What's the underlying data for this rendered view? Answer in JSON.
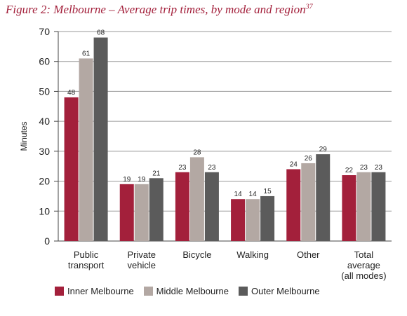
{
  "chart_data": {
    "type": "bar",
    "title": "Figure 2: Melbourne – Average trip times, by mode and region",
    "title_superscript": "37",
    "ylabel": "Minutes",
    "xlabel": "",
    "ylim": [
      0,
      70
    ],
    "yticks": [
      0,
      10,
      20,
      30,
      40,
      50,
      60,
      70
    ],
    "grid": true,
    "legend_position": "bottom",
    "categories": [
      [
        "Public",
        "transport"
      ],
      [
        "Private",
        "vehicle"
      ],
      [
        "Bicycle"
      ],
      [
        "Walking"
      ],
      [
        "Other"
      ],
      [
        "Total",
        "average",
        "(all modes)"
      ]
    ],
    "series": [
      {
        "name": "Inner Melbourne",
        "color": "#a3203b",
        "values": [
          48,
          19,
          23,
          14,
          24,
          22
        ]
      },
      {
        "name": "Middle Melbourne",
        "color": "#b3a8a3",
        "values": [
          61,
          19,
          28,
          14,
          26,
          23
        ]
      },
      {
        "name": "Outer Melbourne",
        "color": "#5b5b5b",
        "values": [
          68,
          21,
          23,
          15,
          29,
          23
        ]
      }
    ]
  }
}
